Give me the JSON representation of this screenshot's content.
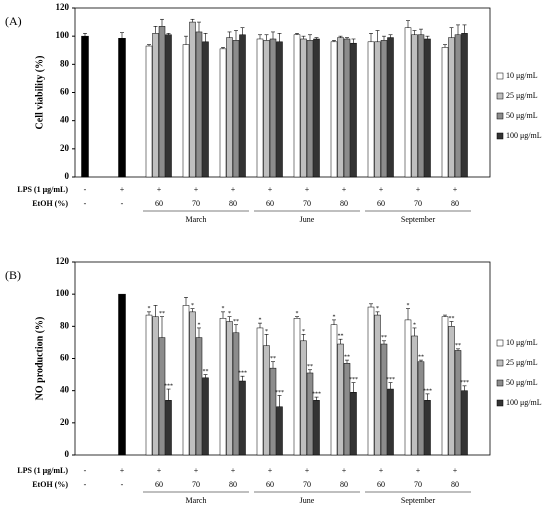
{
  "chart_data": [
    {
      "type": "bar",
      "panel_label": "(A)",
      "y_label": "Cell viability (%)",
      "ylim": [
        0,
        120
      ],
      "yticks": [
        0,
        20,
        40,
        60,
        80,
        100,
        120
      ],
      "lps_label": "LPS (1 μg/mL)",
      "lps": [
        "-",
        "+",
        "+",
        "+",
        "+",
        "+",
        "+",
        "+",
        "+",
        "+",
        "+"
      ],
      "etoh_label": "EtOH (%)",
      "etoh": [
        "-",
        "-",
        "60",
        "70",
        "80",
        "60",
        "70",
        "80",
        "60",
        "70",
        "80"
      ],
      "months": [
        "March",
        "June",
        "September"
      ],
      "control": {
        "color": "#000000",
        "values": [
          100,
          98.5,
          null,
          null,
          null,
          null,
          null,
          null,
          null,
          null,
          null
        ],
        "errors": [
          2,
          4,
          null,
          null,
          null,
          null,
          null,
          null,
          null,
          null,
          null
        ]
      },
      "series": [
        {
          "name": "10 μg/mL",
          "color": "#ffffff",
          "values": [
            null,
            null,
            93,
            94,
            91,
            98,
            101,
            96,
            96,
            106,
            92
          ],
          "errors": [
            null,
            null,
            1,
            6,
            1,
            3,
            1,
            1,
            6,
            5,
            2
          ]
        },
        {
          "name": "25 μg/mL",
          "color": "#bfbfbf",
          "values": [
            null,
            null,
            102,
            110,
            99,
            97,
            98,
            99,
            96,
            101,
            99
          ],
          "errors": [
            null,
            null,
            5,
            2,
            4,
            4,
            2,
            1,
            8,
            3,
            7
          ]
        },
        {
          "name": "50 μg/mL",
          "color": "#8c8c8c",
          "values": [
            null,
            null,
            107,
            103,
            97,
            98,
            97,
            98,
            97,
            101,
            101
          ],
          "errors": [
            null,
            null,
            5,
            7,
            7,
            5,
            4,
            1,
            3,
            4,
            7
          ]
        },
        {
          "name": "100 μg/mL",
          "color": "#333333",
          "values": [
            null,
            null,
            101,
            96,
            101,
            96,
            98,
            95,
            99,
            98,
            102
          ],
          "errors": [
            null,
            null,
            1,
            6,
            5,
            6,
            1,
            3,
            2,
            2,
            6
          ]
        }
      ]
    },
    {
      "type": "bar",
      "panel_label": "(B)",
      "y_label": "NO production (%)",
      "ylim": [
        0,
        120
      ],
      "yticks": [
        0,
        20,
        40,
        60,
        80,
        100,
        120
      ],
      "lps_label": "LPS (1 μg/mL)",
      "lps": [
        "-",
        "+",
        "+",
        "+",
        "+",
        "+",
        "+",
        "+",
        "+",
        "+",
        "+"
      ],
      "etoh_label": "EtOH (%)",
      "etoh": [
        "-",
        "-",
        "60",
        "70",
        "80",
        "60",
        "70",
        "80",
        "60",
        "70",
        "80"
      ],
      "months": [
        "March",
        "June",
        "September"
      ],
      "control": {
        "color": "#000000",
        "values": [
          0,
          100,
          null,
          null,
          null,
          null,
          null,
          null,
          null,
          null,
          null
        ],
        "errors": [
          null,
          null,
          null,
          null,
          null,
          null,
          null,
          null,
          null,
          null,
          null
        ]
      },
      "series": [
        {
          "name": "10 μg/mL",
          "color": "#ffffff",
          "values": [
            null,
            null,
            87,
            93,
            85,
            79,
            85,
            81,
            92,
            84,
            86
          ],
          "errors": [
            null,
            null,
            2,
            5,
            4,
            3,
            1,
            3,
            2,
            7,
            1
          ],
          "stars": [
            null,
            null,
            "*",
            null,
            "*",
            "*",
            "*",
            "*",
            null,
            "*",
            null
          ]
        },
        {
          "name": "25 μg/mL",
          "color": "#bfbfbf",
          "values": [
            null,
            null,
            86,
            89,
            83,
            68,
            71,
            69,
            87,
            74,
            80
          ],
          "errors": [
            null,
            null,
            7,
            2,
            3,
            7,
            4,
            3,
            2,
            5,
            3
          ],
          "stars": [
            null,
            null,
            null,
            "*",
            "*",
            "*",
            "*",
            "**",
            "*",
            "*",
            "**"
          ]
        },
        {
          "name": "50 μg/mL",
          "color": "#8c8c8c",
          "values": [
            null,
            null,
            73,
            73,
            76,
            54,
            51,
            57,
            69,
            58,
            65
          ],
          "errors": [
            null,
            null,
            13,
            6,
            5,
            4,
            2,
            2,
            2,
            1,
            1
          ],
          "stars": [
            null,
            null,
            "**",
            "*",
            "**",
            "**",
            "**",
            "**",
            "**",
            "**",
            "**"
          ]
        },
        {
          "name": "100 μg/mL",
          "color": "#333333",
          "values": [
            null,
            null,
            34,
            48,
            46,
            30,
            34,
            39,
            41,
            34,
            40
          ],
          "errors": [
            null,
            null,
            7,
            2,
            3,
            7,
            2,
            6,
            4,
            4,
            3
          ],
          "stars": [
            null,
            null,
            "***",
            "**",
            "***",
            "***",
            "***",
            "***",
            "***",
            "***",
            "***"
          ]
        }
      ]
    }
  ]
}
